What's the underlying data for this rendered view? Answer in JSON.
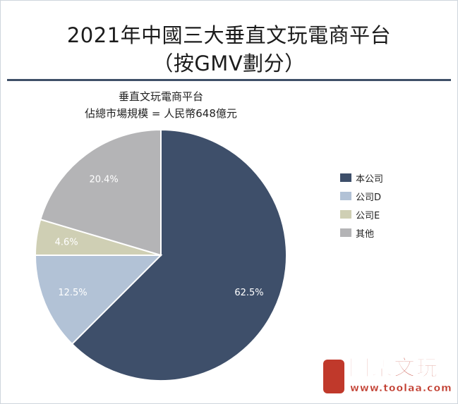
{
  "header": {
    "title_line1": "2021年中國三大垂直文玩電商平台",
    "title_line2": "（按GMV劃分）"
  },
  "chart_data": {
    "type": "pie",
    "title": "垂直文玩電商平台",
    "subtitle": "佔總市場規模 = 人民幣648億元",
    "slices": [
      {
        "label": "本公司",
        "value": 62.5,
        "value_label": "62.5%",
        "color": "#3e4f6a"
      },
      {
        "label": "公司D",
        "value": 12.5,
        "value_label": "12.5%",
        "color": "#b2c2d6"
      },
      {
        "label": "公司E",
        "value": 4.6,
        "value_label": "4.6%",
        "color": "#cfcfb4"
      },
      {
        "label": "其他",
        "value": 20.4,
        "value_label": "20.4%",
        "color": "#b4b4b6"
      }
    ],
    "start": "12 o'clock",
    "direction": "clockwise",
    "legend_position": "right"
  },
  "watermark": {
    "name": "圖樂文玩",
    "url": "www.toolaa.com"
  }
}
